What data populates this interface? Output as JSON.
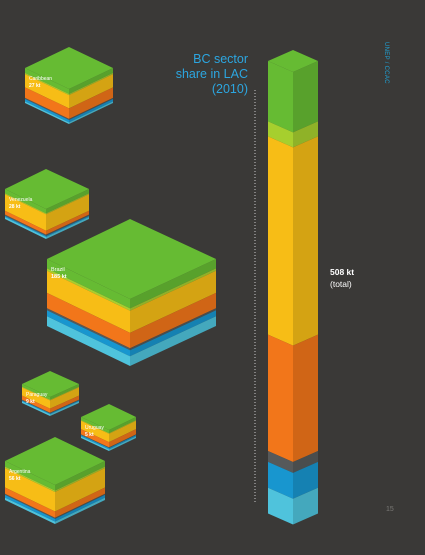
{
  "page": {
    "side_label": "UNEP / CCAC",
    "title": "BC sector share in LAC (2010)",
    "total_value": "508 kt",
    "total_note": "(total)",
    "page_number": "15"
  },
  "chart_data": {
    "type": "stacked-bar",
    "title": "BC sector share in LAC (2010)",
    "total_kt": 508,
    "sector_colors": [
      "#66bb33",
      "#a6cf2e",
      "#f7bd16",
      "#f2761a",
      "#56595a",
      "#1896cf",
      "#4fc3dc"
    ],
    "shares": [
      0.14,
      0.035,
      0.46,
      0.27,
      0.025,
      0.06,
      0.06
    ],
    "countries": [
      {
        "name": "Caribbean",
        "value": "27 kt",
        "shares": [
          0.14,
          0.035,
          0.38,
          0.3,
          0.03,
          0.07,
          0.045
        ]
      },
      {
        "name": "Venezuela",
        "value": "28 kt",
        "shares": [
          0.14,
          0.035,
          0.55,
          0.13,
          0.04,
          0.04,
          0.065
        ]
      },
      {
        "name": "Brazil",
        "value": "185 kt",
        "shares": [
          0.14,
          0.035,
          0.33,
          0.23,
          0.03,
          0.09,
          0.145
        ]
      },
      {
        "name": "Paraguay",
        "value": "9 kt",
        "shares": [
          0.14,
          0.04,
          0.43,
          0.22,
          0.03,
          0.05,
          0.09
        ]
      },
      {
        "name": "Uruguay",
        "value": "5 kt",
        "shares": [
          0.14,
          0.04,
          0.4,
          0.25,
          0.03,
          0.06,
          0.08
        ]
      },
      {
        "name": "Argentina",
        "value": "56 kt",
        "shares": [
          0.14,
          0.04,
          0.5,
          0.16,
          0.03,
          0.07,
          0.06
        ]
      }
    ]
  }
}
